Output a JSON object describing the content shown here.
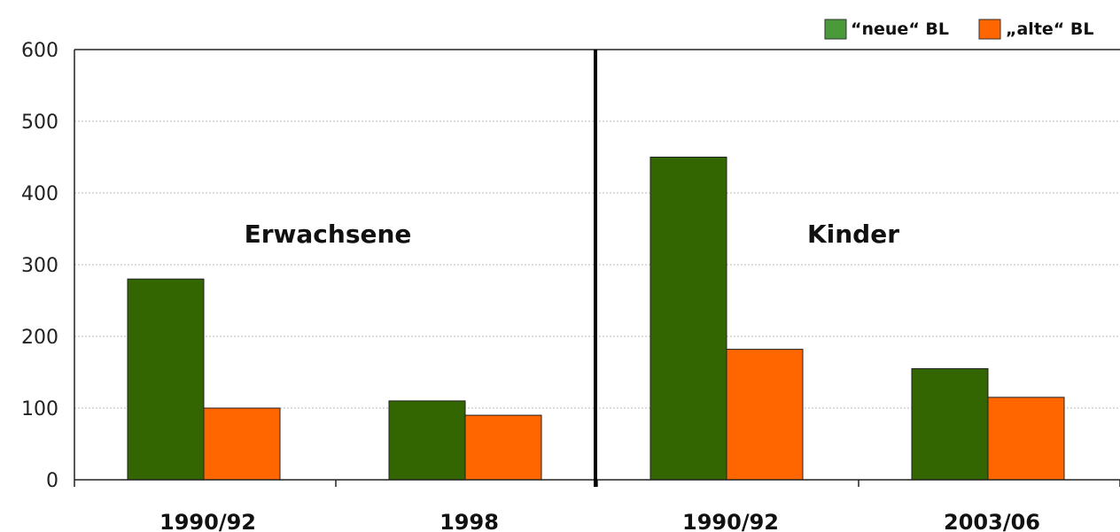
{
  "chart_data": {
    "type": "bar",
    "categories": [
      "1990/92",
      "1998",
      "1990/92",
      "2003/06"
    ],
    "series": [
      {
        "name": "“neue“ BL",
        "color": "#336600",
        "values": [
          280,
          110,
          450,
          155
        ]
      },
      {
        "name": "„alte“ BL",
        "color": "#ff6600",
        "values": [
          100,
          90,
          182,
          115
        ]
      }
    ],
    "panels": [
      {
        "label": "Erwachsene",
        "categories": [
          0,
          1
        ]
      },
      {
        "label": "Kinder",
        "categories": [
          2,
          3
        ]
      }
    ],
    "yticks": [
      "0",
      "100",
      "200",
      "300",
      "400",
      "500",
      "600"
    ],
    "ylim": [
      0,
      600
    ],
    "grid": true,
    "legend_position": "top-right",
    "title": "",
    "xlabel": "",
    "ylabel": ""
  }
}
